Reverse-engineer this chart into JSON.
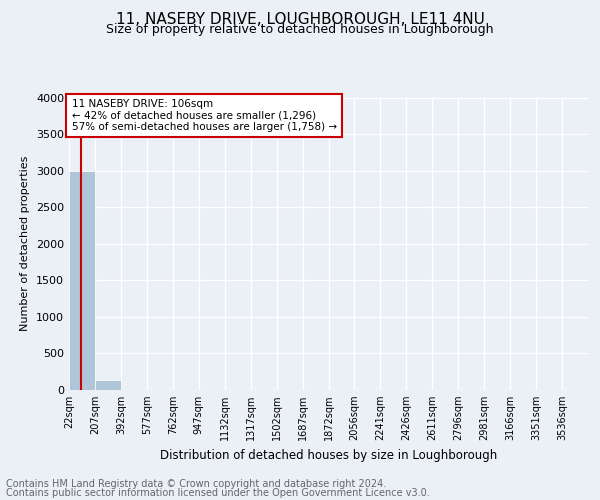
{
  "title_line1": "11, NASEBY DRIVE, LOUGHBOROUGH, LE11 4NU",
  "title_line2": "Size of property relative to detached houses in Loughborough",
  "xlabel": "Distribution of detached houses by size in Loughborough",
  "ylabel": "Number of detached properties",
  "footnote1": "Contains HM Land Registry data © Crown copyright and database right 2024.",
  "footnote2": "Contains public sector information licensed under the Open Government Licence v3.0.",
  "bar_edges": [
    22,
    207,
    392,
    577,
    762,
    947,
    1132,
    1317,
    1502,
    1687,
    1872,
    2056,
    2241,
    2426,
    2611,
    2796,
    2981,
    3166,
    3351,
    3536,
    3721
  ],
  "bar_heights": [
    3000,
    130,
    5,
    2,
    1,
    1,
    1,
    0,
    0,
    0,
    0,
    0,
    0,
    0,
    0,
    0,
    0,
    0,
    0,
    0
  ],
  "bar_color": "#aec6d8",
  "property_size": 106,
  "property_line_color": "#cc0000",
  "annotation_line1": "11 NASEBY DRIVE: 106sqm",
  "annotation_line2": "← 42% of detached houses are smaller (1,296)",
  "annotation_line3": "57% of semi-detached houses are larger (1,758) →",
  "annotation_box_color": "#cc0000",
  "annotation_text_color": "#000000",
  "ylim": [
    0,
    4000
  ],
  "yticks": [
    0,
    500,
    1000,
    1500,
    2000,
    2500,
    3000,
    3500,
    4000
  ],
  "bg_color": "#eaf0f6",
  "axes_bg_color": "#eaf0f6",
  "grid_color": "#ffffff",
  "title1_fontsize": 11,
  "title2_fontsize": 9,
  "footnote_fontsize": 7,
  "tick_label_fontsize": 7,
  "ylabel_fontsize": 8,
  "xlabel_fontsize": 8.5
}
